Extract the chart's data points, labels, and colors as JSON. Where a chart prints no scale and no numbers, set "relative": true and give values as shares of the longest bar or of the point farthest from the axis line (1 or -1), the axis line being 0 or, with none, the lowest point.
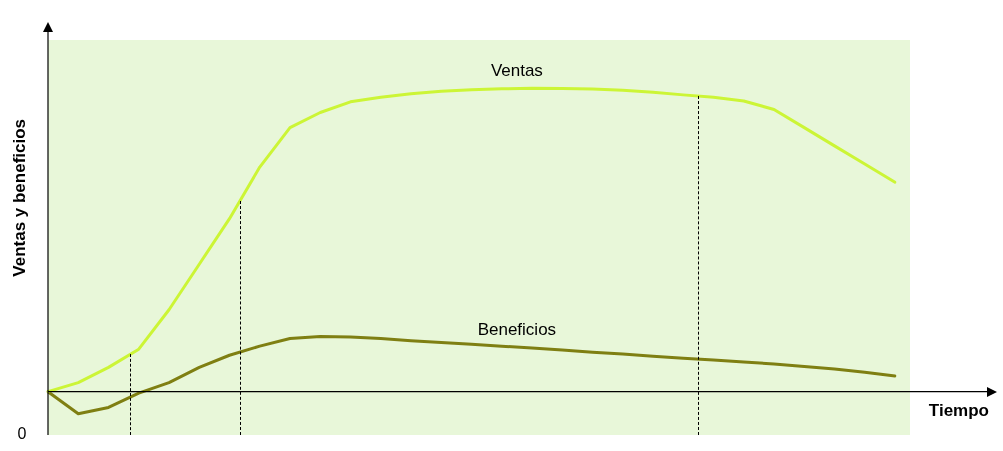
{
  "chart_data": {
    "type": "line",
    "relative": true,
    "xlabel": "Tiempo",
    "ylabel": "Ventas y beneficios",
    "tick_labels": false,
    "legend": false,
    "marker": "none",
    "line_style": "solid",
    "annotations": [
      "0"
    ],
    "categories": [
      null,
      null,
      null,
      null,
      null,
      null,
      null,
      null,
      null,
      null,
      null,
      null,
      null,
      null,
      null,
      null,
      null,
      null,
      null,
      null,
      null,
      null,
      null,
      null,
      null,
      null,
      null,
      null,
      null
    ],
    "series": [
      {
        "name": "Ventas",
        "color": "#ccf536",
        "values": [
          0,
          0.03,
          0.08,
          0.14,
          0.27,
          0.42,
          0.57,
          0.74,
          0.87,
          0.92,
          0.955,
          0.97,
          0.982,
          0.99,
          0.995,
          0.998,
          1,
          0.999,
          0.997,
          0.993,
          0.987,
          0.978,
          0.97,
          0.958,
          0.93,
          0.87,
          0.81,
          0.75,
          0.69
        ]
      },
      {
        "name": "Beneficios",
        "color": "#7f7f12",
        "values": [
          0,
          -0.073,
          -0.052,
          -0.005,
          0.03,
          0.08,
          0.12,
          0.15,
          0.175,
          0.182,
          0.18,
          0.175,
          0.168,
          0.162,
          0.156,
          0.15,
          0.144,
          0.137,
          0.13,
          0.124,
          0.117,
          0.11,
          0.104,
          0.098,
          0.091,
          0.083,
          0.075,
          0.064,
          0.052
        ]
      }
    ]
  }
}
